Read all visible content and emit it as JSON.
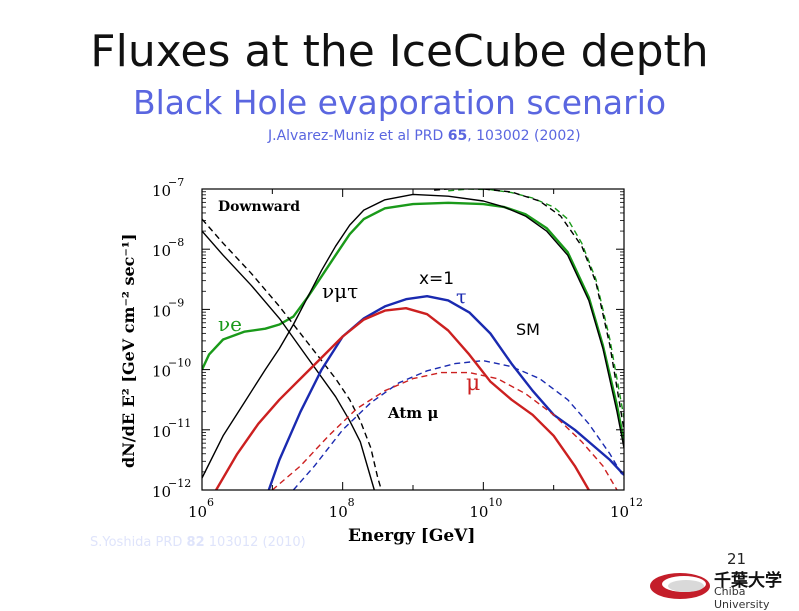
{
  "slide": {
    "title": "Fluxes at the IceCube depth",
    "subtitle": "Black Hole evaporation scenario",
    "ref1_prefix": "J.Alvarez-Muniz et al PRD ",
    "ref1_volume": "65",
    "ref1_suffix": ", 103002 (2002)",
    "ref2_prefix": "S.Yoshida PRD ",
    "ref2_volume": "82",
    "ref2_suffix": " 103012 (2010)",
    "page_number": "21",
    "logo_jp": "千葉大学",
    "logo_en": "Chiba University"
  },
  "chart_data": {
    "type": "line",
    "xlabel": "Energy [GeV]",
    "ylabel": "dN/dE E² [GeV cm⁻² sec⁻¹]",
    "x_scale": "log",
    "y_scale": "log",
    "xlim": [
      6,
      12
    ],
    "ylim": [
      -12,
      -7
    ],
    "x_ticks": [
      {
        "value": 6,
        "base": "10",
        "exp": "6"
      },
      {
        "value": 8,
        "base": "10",
        "exp": "8"
      },
      {
        "value": 10,
        "base": "10",
        "exp": "10"
      },
      {
        "value": 12,
        "base": "10",
        "exp": "12"
      }
    ],
    "y_ticks": [
      {
        "value": -7,
        "base": "10",
        "exp": "−7"
      },
      {
        "value": -8,
        "base": "10",
        "exp": "−8"
      },
      {
        "value": -9,
        "base": "10",
        "exp": "−9"
      },
      {
        "value": -10,
        "base": "10",
        "exp": "−10"
      },
      {
        "value": -11,
        "base": "10",
        "exp": "−11"
      },
      {
        "value": -12,
        "base": "10",
        "exp": "−12"
      }
    ],
    "annotations": {
      "downward": "Downward",
      "numu_tau": "νμτ",
      "nu_e": "νe",
      "x_equals": "x=1",
      "tau": "τ",
      "sm": "SM",
      "mu": "μ",
      "atm_mu": "Atm μ"
    },
    "series": [
      {
        "color": "#1a9a1a",
        "style": "solid",
        "x": [
          6.0,
          6.1,
          6.3,
          6.6,
          6.9,
          7.1,
          7.3,
          7.5,
          7.7,
          7.9,
          8.1,
          8.3,
          8.6,
          9.0,
          9.5,
          10.0,
          10.3,
          10.6,
          10.9,
          11.2,
          11.5,
          11.7,
          11.9,
          12.0
        ],
        "y": [
          -10.0,
          -9.75,
          -9.5,
          -9.37,
          -9.32,
          -9.25,
          -9.12,
          -8.8,
          -8.45,
          -8.1,
          -7.75,
          -7.5,
          -7.32,
          -7.25,
          -7.23,
          -7.25,
          -7.3,
          -7.42,
          -7.65,
          -8.05,
          -8.8,
          -9.6,
          -10.6,
          -11.2
        ]
      },
      {
        "color": "#1a9a1a",
        "style": "dashed",
        "x": [
          9.5,
          9.8,
          10.1,
          10.4,
          10.7,
          11.0,
          11.2,
          11.4,
          11.6,
          11.8,
          12.0
        ],
        "y": [
          -7.03,
          -7.0,
          -7.01,
          -7.06,
          -7.15,
          -7.3,
          -7.5,
          -7.9,
          -8.5,
          -9.5,
          -10.8
        ]
      },
      {
        "color": "#000000",
        "style": "solid",
        "x": [
          6.0,
          6.3,
          6.6,
          6.9,
          7.1,
          7.3,
          7.5,
          7.7,
          7.9,
          8.1,
          8.3,
          8.6,
          9.0,
          9.5,
          10.0,
          10.3,
          10.6,
          10.9,
          11.2,
          11.5,
          11.7,
          11.9,
          12.0
        ],
        "y": [
          -11.8,
          -11.1,
          -10.55,
          -10.0,
          -9.65,
          -9.25,
          -8.8,
          -8.35,
          -7.95,
          -7.6,
          -7.35,
          -7.18,
          -7.09,
          -7.12,
          -7.2,
          -7.3,
          -7.45,
          -7.7,
          -8.1,
          -8.85,
          -9.65,
          -10.7,
          -11.3
        ]
      },
      {
        "color": "#000000",
        "style": "dashed",
        "x": [
          9.3,
          9.6,
          10.0,
          10.4,
          10.8,
          11.1,
          11.4,
          11.6,
          11.8,
          12.0
        ],
        "y": [
          -7.02,
          -6.99,
          -7.0,
          -7.05,
          -7.2,
          -7.45,
          -7.95,
          -8.55,
          -9.6,
          -11.0
        ]
      },
      {
        "color": "#000000",
        "style": "solid",
        "x": [
          6.0,
          6.3,
          6.7,
          7.1,
          7.5,
          7.9,
          8.1,
          8.25,
          8.4,
          8.45
        ],
        "y": [
          -7.7,
          -8.1,
          -8.6,
          -9.15,
          -9.8,
          -10.45,
          -10.85,
          -11.2,
          -11.8,
          -12.0
        ]
      },
      {
        "color": "#000000",
        "style": "dashed",
        "x": [
          6.0,
          6.3,
          6.7,
          7.1,
          7.5,
          7.9,
          8.1,
          8.25,
          8.4,
          8.5,
          8.55
        ],
        "y": [
          -7.5,
          -7.9,
          -8.4,
          -8.95,
          -9.55,
          -10.15,
          -10.5,
          -10.85,
          -11.3,
          -11.8,
          -12.0
        ]
      },
      {
        "color": "#1a2ab0",
        "style": "solid",
        "x": [
          6.95,
          7.1,
          7.4,
          7.7,
          8.0,
          8.3,
          8.6,
          8.9,
          9.2,
          9.5,
          9.8,
          10.1,
          10.4,
          10.7,
          11.0,
          11.3,
          11.6,
          11.8,
          12.0
        ],
        "y": [
          -12.0,
          -11.5,
          -10.7,
          -10.0,
          -9.45,
          -9.15,
          -8.95,
          -8.83,
          -8.78,
          -8.85,
          -9.05,
          -9.4,
          -9.9,
          -10.35,
          -10.75,
          -11.0,
          -11.3,
          -11.5,
          -11.75
        ]
      },
      {
        "color": "#1a2ab0",
        "style": "dashed",
        "x": [
          7.3,
          7.6,
          8.0,
          8.4,
          8.8,
          9.2,
          9.6,
          10.0,
          10.4,
          10.8,
          11.2,
          11.5,
          11.8,
          12.0
        ],
        "y": [
          -12.0,
          -11.6,
          -11.0,
          -10.55,
          -10.22,
          -10.02,
          -9.9,
          -9.85,
          -9.95,
          -10.15,
          -10.5,
          -10.9,
          -11.4,
          -11.8
        ]
      },
      {
        "color": "#cc2020",
        "style": "solid",
        "x": [
          6.2,
          6.5,
          6.8,
          7.1,
          7.4,
          7.7,
          8.0,
          8.3,
          8.6,
          8.9,
          9.2,
          9.5,
          9.8,
          10.1,
          10.4,
          10.7,
          11.0,
          11.3,
          11.5
        ],
        "y": [
          -12.0,
          -11.4,
          -10.9,
          -10.5,
          -10.15,
          -9.8,
          -9.45,
          -9.17,
          -9.02,
          -8.98,
          -9.08,
          -9.35,
          -9.75,
          -10.2,
          -10.5,
          -10.75,
          -11.1,
          -11.6,
          -12.0
        ]
      },
      {
        "color": "#cc2020",
        "style": "dashed",
        "x": [
          7.0,
          7.4,
          7.8,
          8.2,
          8.6,
          9.0,
          9.4,
          9.8,
          10.2,
          10.6,
          11.0,
          11.4,
          11.7,
          11.9
        ],
        "y": [
          -12.0,
          -11.6,
          -11.1,
          -10.65,
          -10.35,
          -10.15,
          -10.05,
          -10.05,
          -10.15,
          -10.4,
          -10.75,
          -11.2,
          -11.6,
          -12.0
        ]
      }
    ]
  }
}
